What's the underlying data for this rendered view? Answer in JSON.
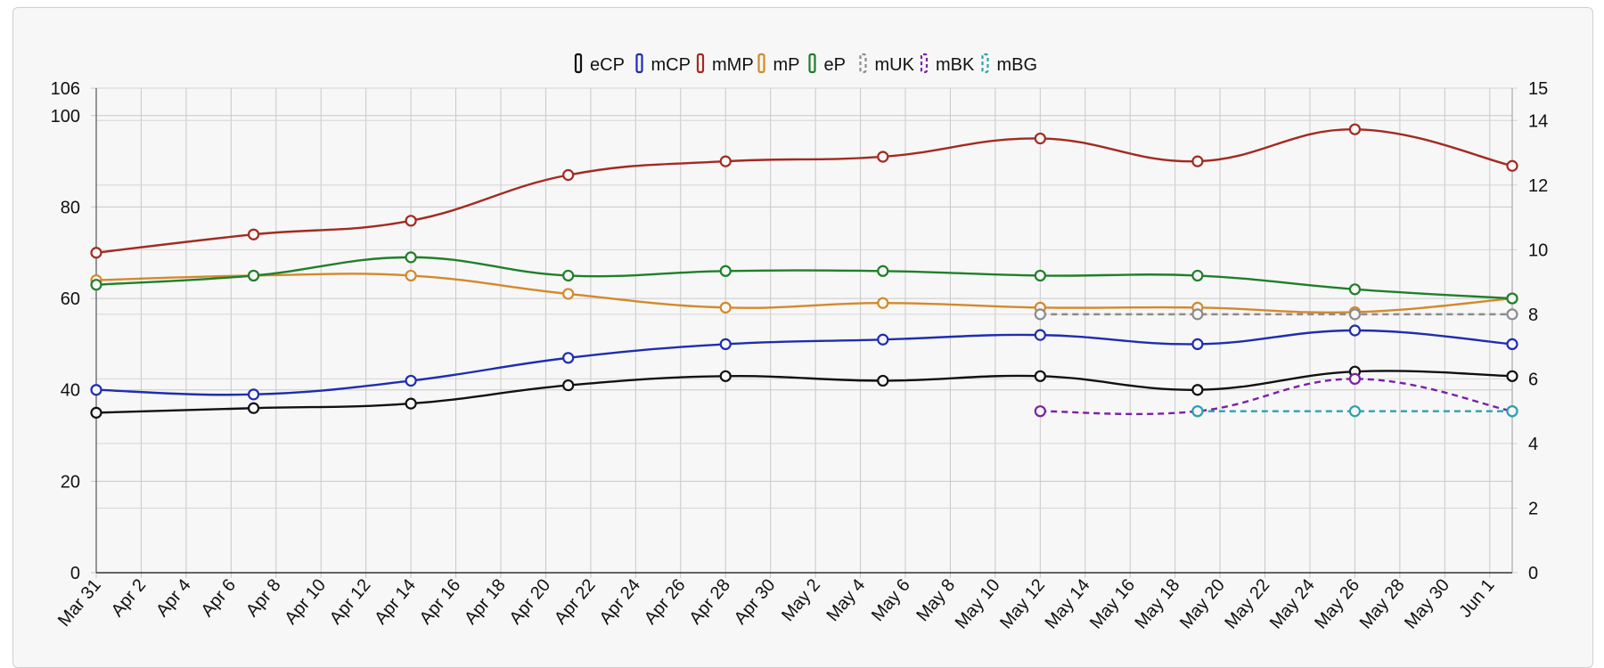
{
  "chart_data": {
    "type": "line",
    "title": "",
    "x_dates": [
      "2019-03-31",
      "2019-04-07",
      "2019-04-14",
      "2019-04-21",
      "2019-04-28",
      "2019-05-05",
      "2019-05-12",
      "2019-05-19",
      "2019-05-26",
      "2019-06-02"
    ],
    "x_tick_labels": [
      {
        "date": "2019-03-31",
        "label": "Mar 31"
      },
      {
        "date": "2019-04-02",
        "label": "Apr 2"
      },
      {
        "date": "2019-04-04",
        "label": "Apr 4"
      },
      {
        "date": "2019-04-06",
        "label": "Apr 6"
      },
      {
        "date": "2019-04-08",
        "label": "Apr 8"
      },
      {
        "date": "2019-04-10",
        "label": "Apr 10"
      },
      {
        "date": "2019-04-12",
        "label": "Apr 12"
      },
      {
        "date": "2019-04-14",
        "label": "Apr 14"
      },
      {
        "date": "2019-04-16",
        "label": "Apr 16"
      },
      {
        "date": "2019-04-18",
        "label": "Apr 18"
      },
      {
        "date": "2019-04-20",
        "label": "Apr 20"
      },
      {
        "date": "2019-04-22",
        "label": "Apr 22"
      },
      {
        "date": "2019-04-24",
        "label": "Apr 24"
      },
      {
        "date": "2019-04-26",
        "label": "Apr 26"
      },
      {
        "date": "2019-04-28",
        "label": "Apr 28"
      },
      {
        "date": "2019-04-30",
        "label": "Apr 30"
      },
      {
        "date": "2019-05-02",
        "label": "May 2"
      },
      {
        "date": "2019-05-04",
        "label": "May 4"
      },
      {
        "date": "2019-05-06",
        "label": "May 6"
      },
      {
        "date": "2019-05-08",
        "label": "May 8"
      },
      {
        "date": "2019-05-10",
        "label": "May 10"
      },
      {
        "date": "2019-05-12",
        "label": "May 12"
      },
      {
        "date": "2019-05-14",
        "label": "May 14"
      },
      {
        "date": "2019-05-16",
        "label": "May 16"
      },
      {
        "date": "2019-05-18",
        "label": "May 18"
      },
      {
        "date": "2019-05-20",
        "label": "May 20"
      },
      {
        "date": "2019-05-22",
        "label": "May 22"
      },
      {
        "date": "2019-05-24",
        "label": "May 24"
      },
      {
        "date": "2019-05-26",
        "label": "May 26"
      },
      {
        "date": "2019-05-28",
        "label": "May 28"
      },
      {
        "date": "2019-05-30",
        "label": "May 30"
      },
      {
        "date": "2019-06-01",
        "label": "Jun 1"
      }
    ],
    "x_range": [
      "2019-03-31",
      "2019-06-02"
    ],
    "y_left": {
      "min": 0,
      "max": 106,
      "ticks": [
        0,
        20,
        40,
        60,
        80,
        100,
        106
      ]
    },
    "y_right": {
      "min": 0,
      "max": 15,
      "ticks": [
        0,
        2,
        4,
        6,
        8,
        10,
        12,
        14,
        15
      ]
    },
    "grid": true,
    "legend_position": "top-center",
    "series": [
      {
        "name": "eCP",
        "color": "#111111",
        "dashed": false,
        "axis": "left",
        "values": [
          35,
          36,
          37,
          41,
          43,
          42,
          43,
          40,
          44,
          43
        ]
      },
      {
        "name": "mCP",
        "color": "#1f2db0",
        "dashed": false,
        "axis": "left",
        "values": [
          40,
          39,
          42,
          47,
          50,
          51,
          52,
          50,
          53,
          50
        ]
      },
      {
        "name": "mMP",
        "color": "#a32a20",
        "dashed": false,
        "axis": "left",
        "values": [
          70,
          74,
          77,
          87,
          90,
          91,
          95,
          90,
          97,
          89
        ]
      },
      {
        "name": "mP",
        "color": "#d4892a",
        "dashed": false,
        "axis": "left",
        "values": [
          64,
          65,
          65,
          61,
          58,
          59,
          58,
          58,
          57,
          60
        ]
      },
      {
        "name": "eP",
        "color": "#1f7f2a",
        "dashed": false,
        "axis": "left",
        "values": [
          63,
          65,
          69,
          65,
          66,
          66,
          65,
          65,
          62,
          60
        ]
      },
      {
        "name": "mUK",
        "color": "#8c8c8c",
        "dashed": true,
        "axis": "right",
        "values": [
          null,
          null,
          null,
          null,
          null,
          null,
          8,
          8,
          8,
          8
        ]
      },
      {
        "name": "mBK",
        "color": "#7a1fa8",
        "dashed": true,
        "axis": "right",
        "values": [
          null,
          null,
          null,
          null,
          null,
          null,
          5,
          5,
          6,
          5
        ]
      },
      {
        "name": "mBG",
        "color": "#2aa3b0",
        "dashed": true,
        "axis": "right",
        "values": [
          null,
          null,
          null,
          null,
          null,
          null,
          null,
          5,
          5,
          5
        ]
      }
    ]
  }
}
